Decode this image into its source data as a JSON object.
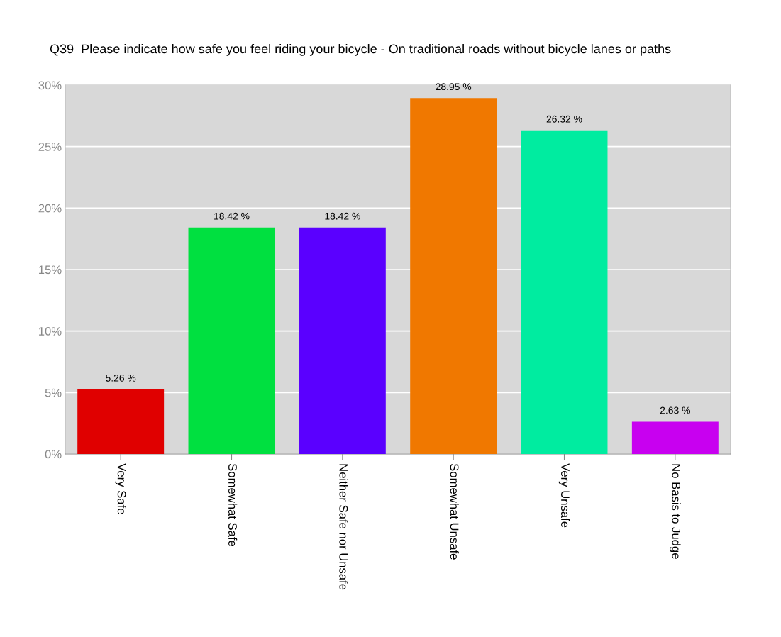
{
  "chart_data": {
    "type": "bar",
    "title": "Q39  Please indicate how safe you feel riding your bicycle - On traditional roads without bicycle lanes or paths",
    "categories": [
      "Very Safe",
      "Somewhat Safe",
      "Neither Safe nor Unsafe",
      "Somewhat Unsafe",
      "Very Unsafe",
      "No Basis to Judge"
    ],
    "values": [
      5.26,
      18.42,
      18.42,
      28.95,
      26.32,
      2.63
    ],
    "colors": [
      "#e00000",
      "#00e040",
      "#5a00ff",
      "#f07800",
      "#00eca0",
      "#c800f0"
    ],
    "value_labels": [
      "5.26 %",
      "18.42 %",
      "18.42 %",
      "28.95 %",
      "26.32 %",
      "2.63 %"
    ],
    "ylim": [
      0,
      30
    ],
    "yticks": [
      {
        "value": 0,
        "label": "0%"
      },
      {
        "value": 5,
        "label": "5%"
      },
      {
        "value": 10,
        "label": "10%"
      },
      {
        "value": 15,
        "label": "15%"
      },
      {
        "value": 20,
        "label": "20%"
      },
      {
        "value": 25,
        "label": "25%"
      },
      {
        "value": 30,
        "label": "30%"
      }
    ],
    "grid": "y"
  }
}
